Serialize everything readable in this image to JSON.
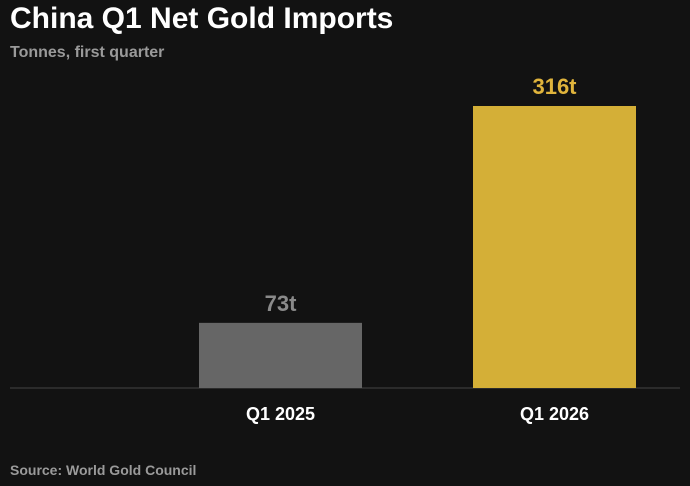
{
  "title": "China Q1 Net Gold Imports",
  "subtitle": "Tonnes, first quarter",
  "source": "Source: World Gold Council",
  "colors": {
    "background": "#121212",
    "bar_2025": "#666666",
    "bar_2026": "#d4af37",
    "label_2025": "#8a8a8a",
    "label_2026": "#e0b43c",
    "baseline": "#444444"
  },
  "chart_data": {
    "type": "bar",
    "title": "China Q1 Net Gold Imports",
    "subtitle": "Tonnes, first quarter",
    "categories": [
      "Q1 2025",
      "Q1 2026"
    ],
    "values": [
      73,
      316
    ],
    "value_labels": [
      "73t",
      "316t"
    ],
    "ylabel": "",
    "xlabel": "",
    "ylim": [
      0,
      316
    ],
    "grid": false
  }
}
